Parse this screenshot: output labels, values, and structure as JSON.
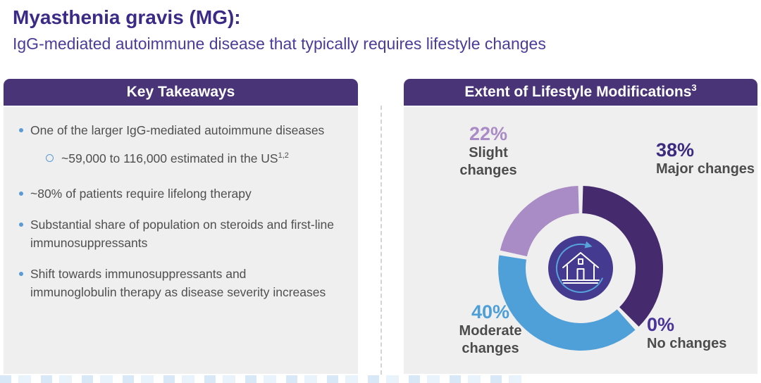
{
  "page": {
    "title": "Myasthenia gravis (MG):",
    "subtitle": "IgG-mediated autoimmune disease that typically requires lifestyle changes"
  },
  "key_takeaways": {
    "header": "Key Takeaways",
    "bullets": [
      {
        "text": "One of the larger IgG-mediated autoimmune diseases",
        "sub_bullets": [
          {
            "text": "~59,000 to 116,000 estimated in the US",
            "sup": "1,2"
          }
        ]
      },
      {
        "text": "~80% of patients require lifelong therapy"
      },
      {
        "text": "Substantial share of population on steroids and first-line immunosuppressants"
      },
      {
        "text": "Shift towards immunosuppressants and immunoglobulin therapy as disease severity increases"
      }
    ]
  },
  "lifestyle_panel": {
    "header": "Extent of Lifestyle Modifications",
    "header_superscript": "3"
  },
  "chart_data": {
    "type": "pie",
    "variant": "donut",
    "title": "Extent of Lifestyle Modifications",
    "title_superscript": "3",
    "start_angle_deg": 0,
    "clockwise": true,
    "center_icon": "house-refresh-icon",
    "legend_position": "around",
    "segments": [
      {
        "label_lines": [
          "Major changes"
        ],
        "value_pct": 38,
        "value_label": "38%",
        "color": "#452a6e",
        "value_color": "#3d2b80"
      },
      {
        "label_lines": [
          "No changes"
        ],
        "value_pct": 0,
        "value_label": "0%",
        "color": "#4a3399",
        "value_color": "#4a3399"
      },
      {
        "label_lines": [
          "Moderate",
          "changes"
        ],
        "value_pct": 40,
        "value_label": "40%",
        "color": "#4fa0d8",
        "value_color": "#4d9fd8"
      },
      {
        "label_lines": [
          "Slight",
          "changes"
        ],
        "value_pct": 22,
        "value_label": "22%",
        "color": "#a98bc5",
        "value_color": "#a98bc5"
      }
    ]
  },
  "colors": {
    "header_bg": "#4a3478",
    "panel_bg": "#f0efef",
    "title": "#3b2b87",
    "subtitle": "#4c3c99",
    "body_text": "#4f4f4f",
    "bullet": "#5b9bd5",
    "center_circle": "#443a8f",
    "center_arrow": "#56a4da"
  },
  "icons": {
    "center": "house-refresh-icon"
  }
}
